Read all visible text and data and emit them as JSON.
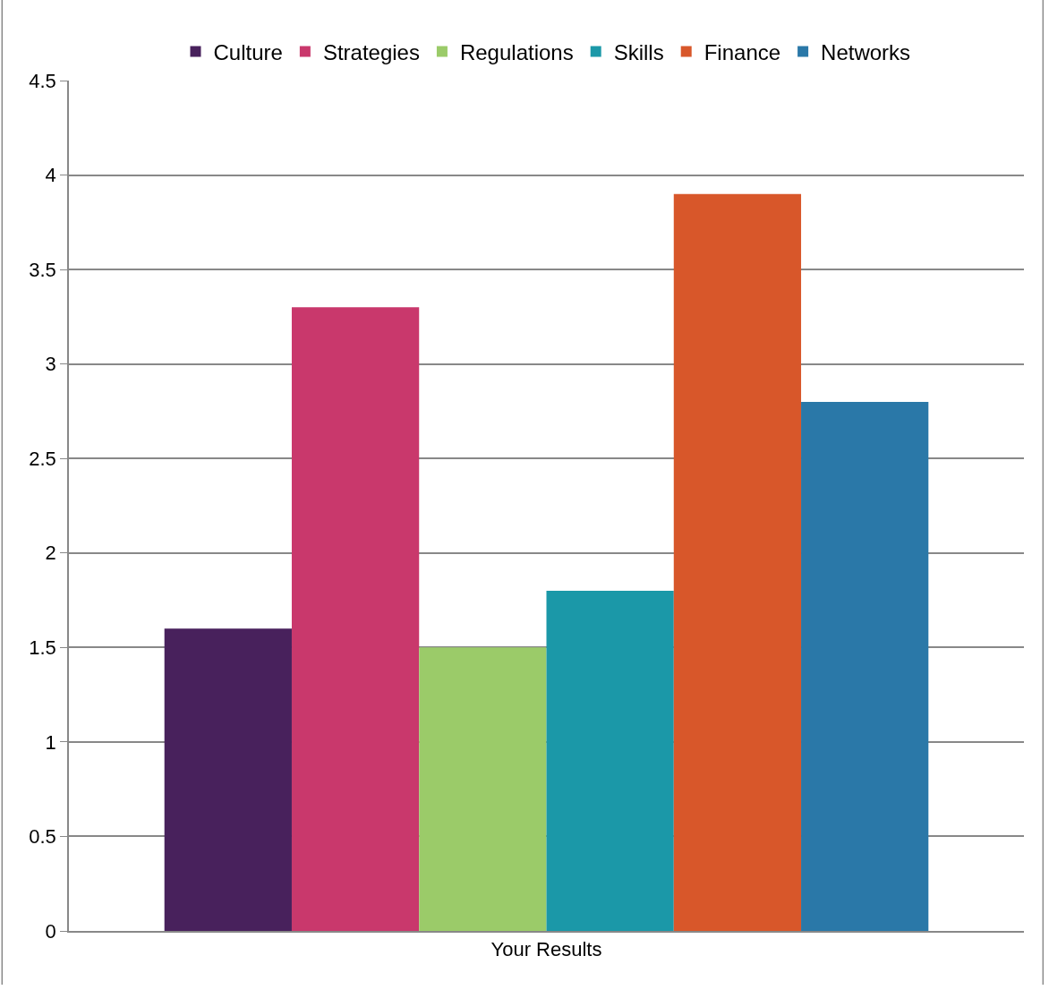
{
  "chart_data": {
    "type": "bar",
    "categories": [
      "Your Results"
    ],
    "series": [
      {
        "name": "Culture",
        "color": "#48215c",
        "values": [
          1.6
        ]
      },
      {
        "name": "Strategies",
        "color": "#c9386c",
        "values": [
          3.3
        ]
      },
      {
        "name": "Regulations",
        "color": "#9bcb69",
        "values": [
          1.5
        ]
      },
      {
        "name": "Skills",
        "color": "#1b98a8",
        "values": [
          1.8
        ]
      },
      {
        "name": "Finance",
        "color": "#d8572a",
        "values": [
          3.9
        ]
      },
      {
        "name": "Networks",
        "color": "#2a78a8",
        "values": [
          2.8
        ]
      }
    ],
    "ylim": [
      0,
      4.5
    ],
    "yticks": [
      0,
      0.5,
      1,
      1.5,
      2,
      2.5,
      3,
      3.5,
      4,
      4.5
    ],
    "grid": "y",
    "legend": "top"
  }
}
